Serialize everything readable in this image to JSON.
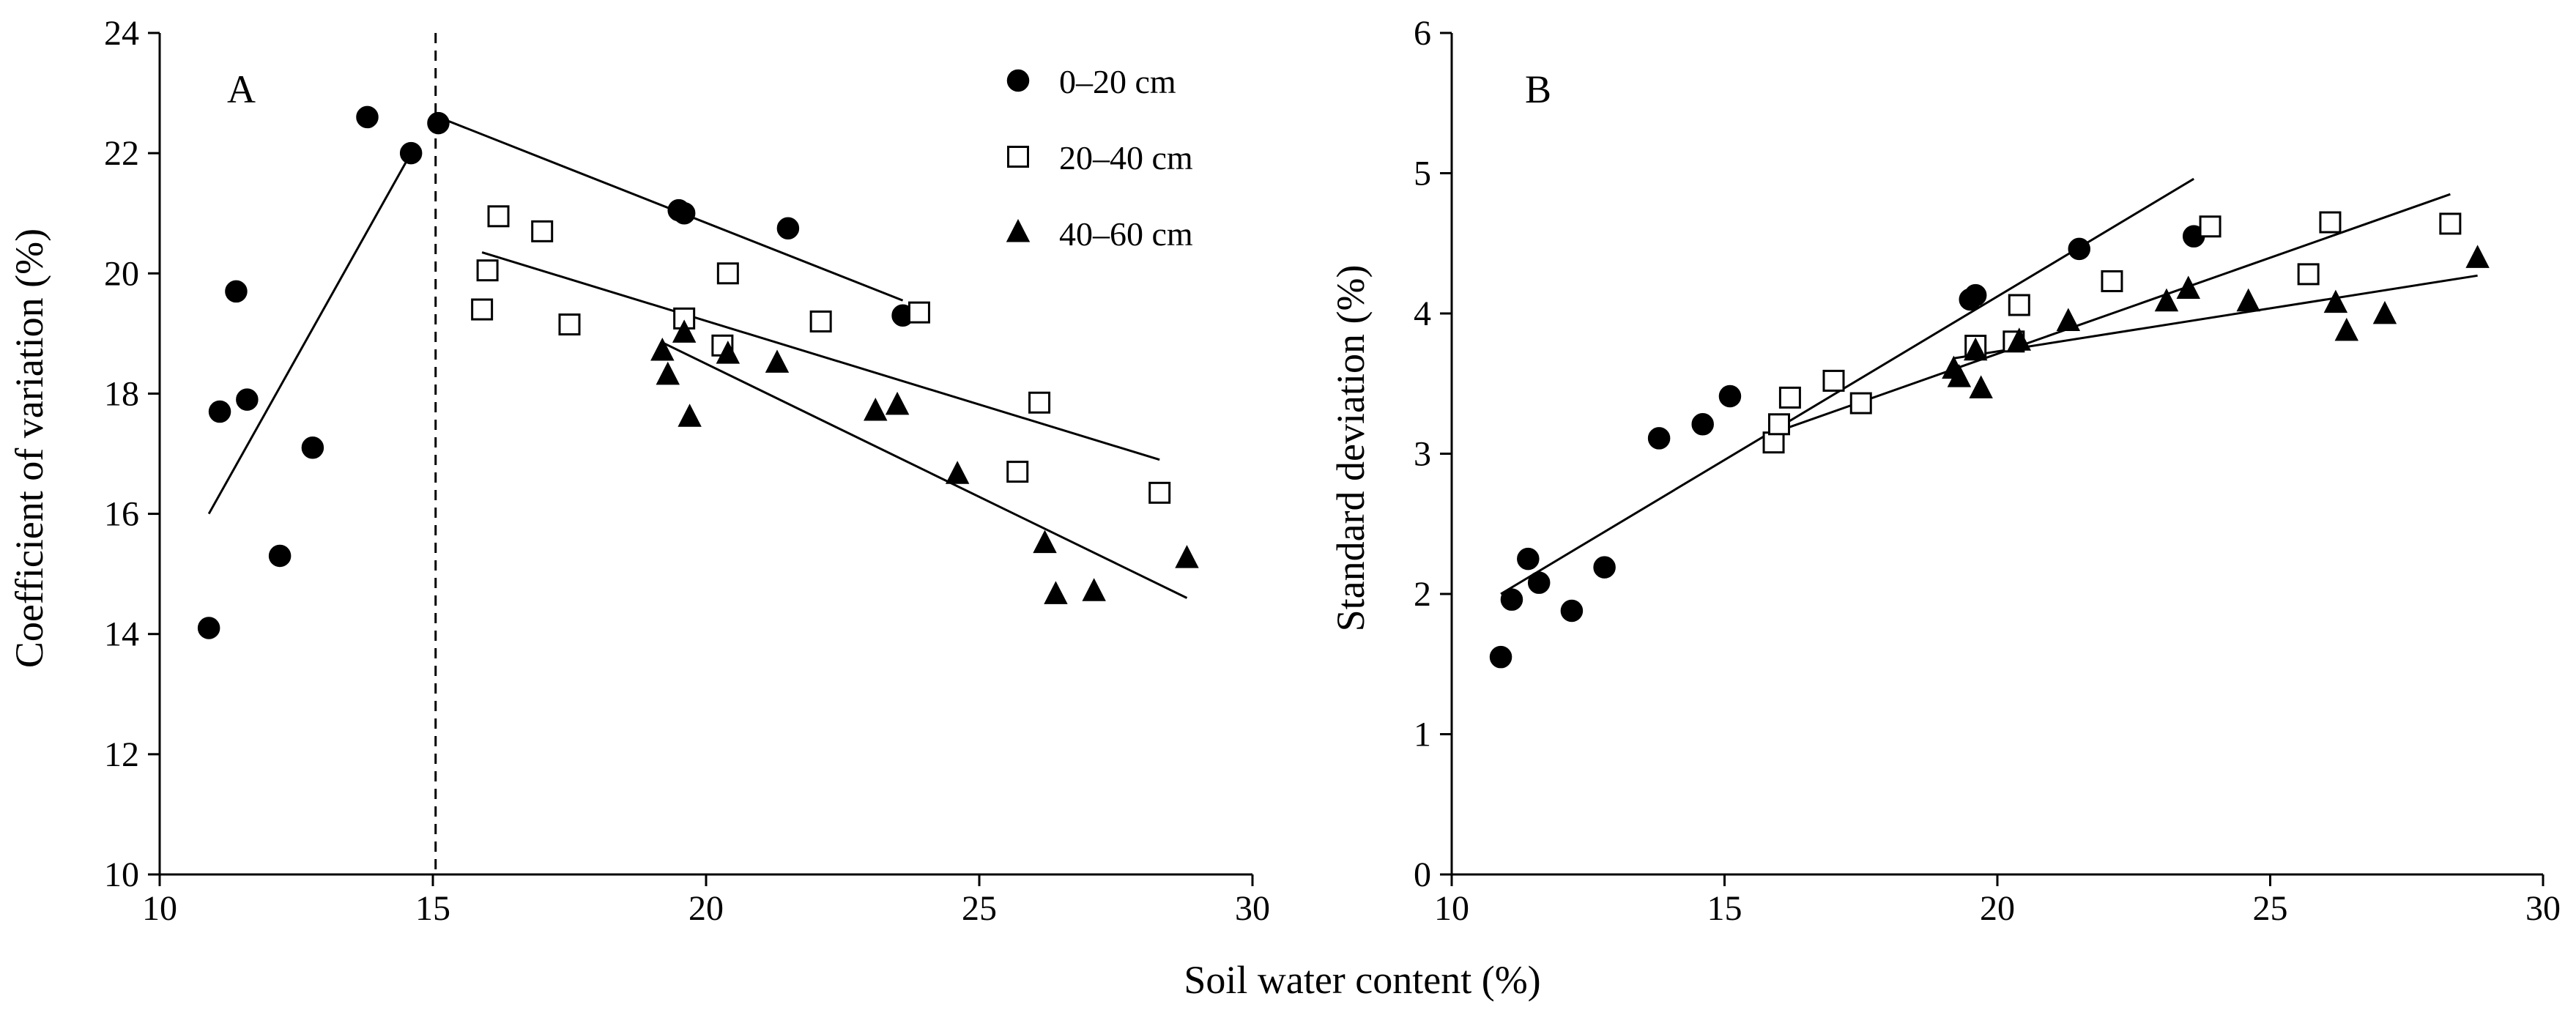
{
  "figure": {
    "shared_xlabel": "Soil water content (%)"
  },
  "legend": {
    "entries": [
      {
        "name": "0–20 cm",
        "marker": "circle-filled"
      },
      {
        "name": "20–40 cm",
        "marker": "square-open"
      },
      {
        "name": "40–60 cm",
        "marker": "triangle-filled"
      }
    ]
  },
  "chart_data": [
    {
      "panel": "A",
      "type": "scatter",
      "ylabel": "Coefficient of variation (%)",
      "xlabel": "Soil water content (%)",
      "xlim": [
        10,
        30
      ],
      "ylim": [
        10,
        24
      ],
      "xticks": [
        10,
        15,
        20,
        25,
        30
      ],
      "yticks": [
        10,
        12,
        14,
        16,
        18,
        20,
        22,
        24
      ],
      "legend_position": "top-right",
      "vline": {
        "x": 15.05,
        "style": "dashed"
      },
      "series": [
        {
          "name": "0–20 cm",
          "marker": "circle-filled",
          "points": [
            [
              10.9,
              14.1
            ],
            [
              11.1,
              17.7
            ],
            [
              11.4,
              19.7
            ],
            [
              11.6,
              17.9
            ],
            [
              12.2,
              15.3
            ],
            [
              12.8,
              17.1
            ],
            [
              13.8,
              22.6
            ],
            [
              14.6,
              22.0
            ],
            [
              15.1,
              22.5
            ],
            [
              19.5,
              21.05
            ],
            [
              19.6,
              21.0
            ],
            [
              21.5,
              20.75
            ],
            [
              23.6,
              19.3
            ]
          ]
        },
        {
          "name": "20–40 cm",
          "marker": "square-open",
          "points": [
            [
              15.9,
              19.4
            ],
            [
              16.0,
              20.05
            ],
            [
              16.2,
              20.95
            ],
            [
              17.0,
              20.7
            ],
            [
              17.5,
              19.15
            ],
            [
              19.6,
              19.25
            ],
            [
              20.3,
              18.8
            ],
            [
              20.4,
              20.0
            ],
            [
              22.1,
              19.2
            ],
            [
              23.9,
              19.35
            ],
            [
              25.7,
              16.7
            ],
            [
              26.1,
              17.85
            ],
            [
              28.3,
              16.35
            ]
          ]
        },
        {
          "name": "40–60 cm",
          "marker": "triangle-filled",
          "points": [
            [
              19.2,
              18.7
            ],
            [
              19.3,
              18.3
            ],
            [
              19.6,
              19.0
            ],
            [
              19.7,
              17.6
            ],
            [
              20.4,
              18.65
            ],
            [
              21.3,
              18.5
            ],
            [
              23.1,
              17.7
            ],
            [
              23.5,
              17.8
            ],
            [
              24.6,
              16.65
            ],
            [
              26.2,
              15.5
            ],
            [
              26.4,
              14.65
            ],
            [
              27.1,
              14.7
            ],
            [
              28.8,
              15.25
            ]
          ]
        }
      ],
      "fit_lines": [
        {
          "series": "0–20 cm",
          "from": [
            10.9,
            16.0
          ],
          "to": [
            14.6,
            22.0
          ]
        },
        {
          "series": "0–20 cm",
          "from": [
            15.1,
            22.6
          ],
          "to": [
            23.6,
            19.55
          ]
        },
        {
          "series": "20–40 cm",
          "from": [
            15.9,
            20.35
          ],
          "to": [
            28.3,
            16.9
          ]
        },
        {
          "series": "40–60 cm",
          "from": [
            19.2,
            18.85
          ],
          "to": [
            28.8,
            14.6
          ]
        }
      ]
    },
    {
      "panel": "B",
      "type": "scatter",
      "ylabel": "Standard deviation (%)",
      "xlabel": "Soil water content (%)",
      "xlim": [
        10,
        30
      ],
      "ylim": [
        0,
        6
      ],
      "xticks": [
        10,
        15,
        20,
        25,
        30
      ],
      "yticks": [
        0,
        1,
        2,
        3,
        4,
        5,
        6
      ],
      "series": [
        {
          "name": "0–20 cm",
          "marker": "circle-filled",
          "points": [
            [
              10.9,
              1.55
            ],
            [
              11.1,
              1.96
            ],
            [
              11.4,
              2.25
            ],
            [
              11.6,
              2.08
            ],
            [
              12.2,
              1.88
            ],
            [
              12.8,
              2.19
            ],
            [
              13.8,
              3.11
            ],
            [
              14.6,
              3.21
            ],
            [
              15.1,
              3.41
            ],
            [
              19.5,
              4.1
            ],
            [
              19.6,
              4.13
            ],
            [
              21.5,
              4.46
            ],
            [
              23.6,
              4.55
            ]
          ]
        },
        {
          "name": "20–40 cm",
          "marker": "square-open",
          "points": [
            [
              15.9,
              3.08
            ],
            [
              16.0,
              3.21
            ],
            [
              16.2,
              3.4
            ],
            [
              17.0,
              3.52
            ],
            [
              17.5,
              3.36
            ],
            [
              19.6,
              3.77
            ],
            [
              20.3,
              3.8
            ],
            [
              20.4,
              4.06
            ],
            [
              22.1,
              4.23
            ],
            [
              23.9,
              4.62
            ],
            [
              25.7,
              4.28
            ],
            [
              26.1,
              4.65
            ],
            [
              28.3,
              4.64
            ]
          ]
        },
        {
          "name": "40–60 cm",
          "marker": "triangle-filled",
          "points": [
            [
              19.2,
              3.6
            ],
            [
              19.3,
              3.54
            ],
            [
              19.6,
              3.73
            ],
            [
              19.7,
              3.46
            ],
            [
              20.4,
              3.8
            ],
            [
              21.3,
              3.94
            ],
            [
              23.1,
              4.08
            ],
            [
              23.5,
              4.17
            ],
            [
              24.6,
              4.08
            ],
            [
              26.2,
              4.07
            ],
            [
              26.4,
              3.87
            ],
            [
              27.1,
              3.99
            ],
            [
              28.8,
              4.39
            ]
          ]
        }
      ],
      "fit_lines": [
        {
          "series": "0–20 cm",
          "from": [
            10.9,
            2.0
          ],
          "to": [
            23.6,
            4.96
          ]
        },
        {
          "series": "20–40 cm",
          "from": [
            15.9,
            3.15
          ],
          "to": [
            28.3,
            4.85
          ]
        },
        {
          "series": "40–60 cm",
          "from": [
            19.2,
            3.68
          ],
          "to": [
            28.8,
            4.27
          ]
        }
      ]
    }
  ]
}
